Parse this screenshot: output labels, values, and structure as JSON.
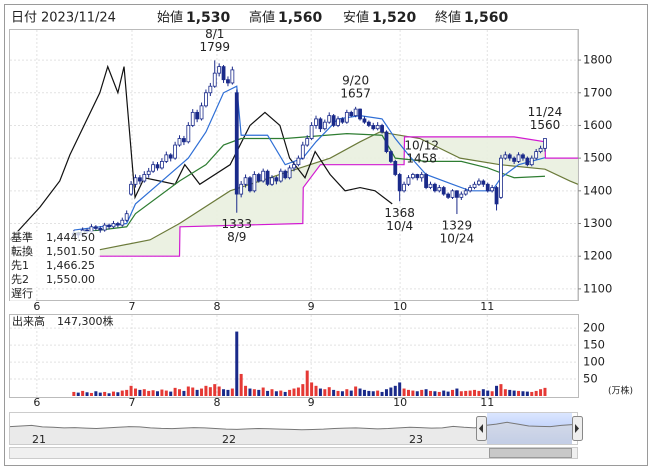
{
  "header": {
    "date_label": "日付",
    "date": "2023/11/24",
    "fields": [
      {
        "label": "始値",
        "value": "1,530",
        "color": "#111111"
      },
      {
        "label": "高値",
        "value": "1,560",
        "color": "#e00000"
      },
      {
        "label": "安値",
        "value": "1,520",
        "color": "#008a00"
      },
      {
        "label": "終値",
        "value": "1,560",
        "color": "#111111"
      }
    ]
  },
  "chart_data": {
    "type": "candlestick",
    "ohlc": [
      [
        1265,
        1280,
        1258,
        1270
      ],
      [
        1270,
        1275,
        1255,
        1265
      ],
      [
        1265,
        1288,
        1260,
        1280
      ],
      [
        1280,
        1285,
        1268,
        1275
      ],
      [
        1275,
        1298,
        1270,
        1290
      ],
      [
        1290,
        1295,
        1278,
        1285
      ],
      [
        1285,
        1292,
        1272,
        1280
      ],
      [
        1280,
        1302,
        1275,
        1295
      ],
      [
        1295,
        1300,
        1282,
        1290
      ],
      [
        1290,
        1308,
        1285,
        1300
      ],
      [
        1300,
        1305,
        1288,
        1295
      ],
      [
        1295,
        1318,
        1290,
        1310
      ],
      [
        1310,
        1340,
        1305,
        1330
      ],
      [
        1390,
        1430,
        1385,
        1420
      ],
      [
        1420,
        1450,
        1410,
        1440
      ],
      [
        1440,
        1448,
        1420,
        1430
      ],
      [
        1430,
        1460,
        1425,
        1450
      ],
      [
        1450,
        1470,
        1440,
        1460
      ],
      [
        1460,
        1490,
        1455,
        1480
      ],
      [
        1480,
        1488,
        1462,
        1470
      ],
      [
        1470,
        1500,
        1465,
        1490
      ],
      [
        1490,
        1520,
        1485,
        1510
      ],
      [
        1510,
        1515,
        1490,
        1500
      ],
      [
        1500,
        1550,
        1495,
        1540
      ],
      [
        1540,
        1570,
        1535,
        1560
      ],
      [
        1560,
        1568,
        1540,
        1550
      ],
      [
        1550,
        1610,
        1545,
        1600
      ],
      [
        1600,
        1650,
        1595,
        1640
      ],
      [
        1640,
        1648,
        1610,
        1620
      ],
      [
        1620,
        1670,
        1615,
        1660
      ],
      [
        1660,
        1710,
        1655,
        1700
      ],
      [
        1700,
        1730,
        1690,
        1720
      ],
      [
        1720,
        1799,
        1715,
        1760
      ],
      [
        1760,
        1790,
        1750,
        1780
      ],
      [
        1780,
        1785,
        1730,
        1740
      ],
      [
        1740,
        1750,
        1720,
        1730
      ],
      [
        1730,
        1780,
        1725,
        1770
      ],
      [
        1700,
        1710,
        1333,
        1390
      ],
      [
        1390,
        1430,
        1380,
        1420
      ],
      [
        1420,
        1450,
        1410,
        1440
      ],
      [
        1440,
        1445,
        1395,
        1400
      ],
      [
        1400,
        1460,
        1395,
        1450
      ],
      [
        1450,
        1455,
        1425,
        1430
      ],
      [
        1430,
        1468,
        1425,
        1460
      ],
      [
        1460,
        1465,
        1415,
        1420
      ],
      [
        1420,
        1448,
        1415,
        1440
      ],
      [
        1440,
        1445,
        1420,
        1430
      ],
      [
        1430,
        1468,
        1425,
        1460
      ],
      [
        1460,
        1465,
        1435,
        1440
      ],
      [
        1440,
        1478,
        1435,
        1470
      ],
      [
        1470,
        1490,
        1460,
        1480
      ],
      [
        1480,
        1508,
        1475,
        1500
      ],
      [
        1500,
        1550,
        1495,
        1540
      ],
      [
        1540,
        1570,
        1535,
        1560
      ],
      [
        1560,
        1610,
        1555,
        1600
      ],
      [
        1600,
        1630,
        1590,
        1620
      ],
      [
        1620,
        1625,
        1580,
        1590
      ],
      [
        1590,
        1618,
        1585,
        1610
      ],
      [
        1610,
        1640,
        1605,
        1630
      ],
      [
        1630,
        1635,
        1595,
        1600
      ],
      [
        1600,
        1628,
        1595,
        1620
      ],
      [
        1620,
        1625,
        1605,
        1610
      ],
      [
        1610,
        1648,
        1605,
        1640
      ],
      [
        1640,
        1645,
        1625,
        1630
      ],
      [
        1630,
        1657,
        1625,
        1650
      ],
      [
        1650,
        1652,
        1615,
        1620
      ],
      [
        1620,
        1628,
        1605,
        1610
      ],
      [
        1610,
        1615,
        1595,
        1600
      ],
      [
        1600,
        1608,
        1585,
        1590
      ],
      [
        1590,
        1610,
        1585,
        1600
      ],
      [
        1600,
        1605,
        1575,
        1580
      ],
      [
        1580,
        1585,
        1515,
        1520
      ],
      [
        1520,
        1525,
        1485,
        1490
      ],
      [
        1490,
        1495,
        1445,
        1450
      ],
      [
        1450,
        1455,
        1368,
        1400
      ],
      [
        1400,
        1428,
        1395,
        1420
      ],
      [
        1420,
        1448,
        1415,
        1440
      ],
      [
        1440,
        1455,
        1435,
        1450
      ],
      [
        1450,
        1452,
        1432,
        1440
      ],
      [
        1440,
        1458,
        1428,
        1450
      ],
      [
        1450,
        1455,
        1405,
        1410
      ],
      [
        1410,
        1428,
        1405,
        1420
      ],
      [
        1420,
        1425,
        1395,
        1400
      ],
      [
        1400,
        1418,
        1395,
        1410
      ],
      [
        1410,
        1415,
        1385,
        1390
      ],
      [
        1390,
        1395,
        1375,
        1380
      ],
      [
        1380,
        1405,
        1375,
        1400
      ],
      [
        1400,
        1402,
        1329,
        1380
      ],
      [
        1380,
        1398,
        1372,
        1390
      ],
      [
        1390,
        1408,
        1385,
        1400
      ],
      [
        1400,
        1418,
        1395,
        1410
      ],
      [
        1410,
        1428,
        1405,
        1420
      ],
      [
        1420,
        1438,
        1415,
        1430
      ],
      [
        1430,
        1435,
        1412,
        1420
      ],
      [
        1420,
        1425,
        1395,
        1400
      ],
      [
        1400,
        1418,
        1395,
        1410
      ],
      [
        1410,
        1415,
        1340,
        1360
      ],
      [
        1380,
        1510,
        1375,
        1500
      ],
      [
        1500,
        1520,
        1495,
        1510
      ],
      [
        1510,
        1515,
        1492,
        1500
      ],
      [
        1500,
        1505,
        1482,
        1490
      ],
      [
        1490,
        1518,
        1485,
        1510
      ],
      [
        1510,
        1515,
        1492,
        1500
      ],
      [
        1500,
        1505,
        1475,
        1480
      ],
      [
        1480,
        1508,
        1475,
        1500
      ],
      [
        1500,
        1528,
        1495,
        1520
      ],
      [
        1520,
        1538,
        1515,
        1530
      ],
      [
        1530,
        1560,
        1520,
        1560
      ]
    ],
    "up_color": "#ffffff",
    "down_color": "#1a2a8a",
    "candle_stroke": "#1a2a8a",
    "ylim": [
      1066,
      1892
    ],
    "yticks": [
      1100,
      1200,
      1300,
      1400,
      1500,
      1600,
      1700,
      1800
    ],
    "xlim": [
      -14.5,
      114.5
    ],
    "xticks": [
      {
        "value": -8.4,
        "label": "6"
      },
      {
        "value": 13.2,
        "label": "7"
      },
      {
        "value": 32.5,
        "label": "8"
      },
      {
        "value": 53.9,
        "label": "9"
      },
      {
        "value": 74.1,
        "label": "10"
      },
      {
        "value": 93.9,
        "label": "11"
      }
    ],
    "grid": true,
    "cloud_color": "#e9efdf",
    "ichimoku": [
      {
        "name": "基準",
        "legend_value": "1,444.50",
        "color": "#2e7d32",
        "x": [
          0,
          12,
          14,
          24,
          30,
          34,
          38,
          48,
          62,
          70,
          73,
          80,
          88,
          94,
          100,
          107
        ],
        "values": [
          1270,
          1290,
          1330,
          1430,
          1480,
          1540,
          1560,
          1560,
          1575,
          1570,
          1500,
          1490,
          1490,
          1470,
          1440,
          1444.5
        ]
      },
      {
        "name": "転換",
        "legend_value": "1,501.50",
        "color": "#2f6fd6",
        "x": [
          0,
          12,
          14,
          20,
          26,
          30,
          34,
          37,
          38,
          44,
          48,
          52,
          55,
          60,
          65,
          70,
          73,
          76,
          80,
          86,
          90,
          95,
          97,
          101,
          107
        ],
        "values": [
          1280,
          1300,
          1360,
          1430,
          1500,
          1580,
          1700,
          1720,
          1570,
          1570,
          1480,
          1500,
          1550,
          1620,
          1630,
          1620,
          1560,
          1510,
          1450,
          1420,
          1400,
          1400,
          1440,
          1480,
          1501.5
        ]
      },
      {
        "name": "先1",
        "legend_value": "1,466.25",
        "color": "#6b7a3a",
        "x": [
          5.9,
          17.3,
          24,
          35.5,
          46.8,
          58.2,
          65,
          69.5,
          78.6,
          87.7,
          96.8,
          107,
          112.7,
          114.5
        ],
        "values": [
          1220,
          1250,
          1300,
          1400,
          1450,
          1500,
          1550,
          1580,
          1560,
          1500,
          1480,
          1466.25,
          1430,
          1420
        ]
      },
      {
        "name": "先2",
        "legend_value": "1,550.00",
        "color": "#d21ad2",
        "x": [
          5.9,
          24,
          24.1,
          52,
          52.1,
          56,
          75,
          75.1,
          100,
          107,
          107.1,
          114.5
        ],
        "values": [
          1200,
          1200,
          1290,
          1300,
          1410,
          1480,
          1480,
          1565,
          1565,
          1550,
          1500,
          1500
        ]
      },
      {
        "name": "遅行",
        "color": "#111111",
        "x": [
          -14.5,
          -7.7,
          -3.2,
          -0.9,
          5.9,
          7.7,
          10,
          11.4,
          13.9,
          16,
          19.5,
          23,
          25.2,
          28.6,
          35.5,
          40,
          43.4,
          46.8,
          49,
          52.5,
          54.8,
          58.2,
          61.6,
          65,
          68.4,
          72.3
        ],
        "values": [
          1250,
          1350,
          1430,
          1510,
          1700,
          1780,
          1700,
          1780,
          1380,
          1440,
          1430,
          1420,
          1480,
          1420,
          1480,
          1600,
          1640,
          1600,
          1500,
          1440,
          1520,
          1450,
          1400,
          1410,
          1400,
          1360
        ]
      }
    ],
    "annotations": [
      {
        "date": "8/1",
        "value": 1799,
        "x": 32,
        "position": "above"
      },
      {
        "date": "8/9",
        "value": 1333,
        "x": 37,
        "position": "below"
      },
      {
        "date": "9/20",
        "value": 1657,
        "x": 64,
        "position": "above"
      },
      {
        "date": "10/4",
        "value": 1368,
        "x": 74,
        "position": "below"
      },
      {
        "date": "10/12",
        "value": 1458,
        "x": 79,
        "position": "above"
      },
      {
        "date": "10/24",
        "value": 1329,
        "x": 87,
        "position": "below"
      },
      {
        "date": "11/24",
        "value": 1560,
        "x": 107,
        "position": "above"
      }
    ],
    "volume": {
      "title": "出来高",
      "total": "147,300株",
      "unit": "(万株)",
      "up_color": "#e53935",
      "down_color": "#1a2a8a",
      "ylim": [
        0,
        230
      ],
      "yticks": [
        50,
        100,
        150,
        200
      ],
      "values": [
        12,
        10,
        15,
        11,
        9,
        14,
        10,
        12,
        8,
        13,
        11,
        16,
        18,
        30,
        22,
        18,
        20,
        15,
        17,
        14,
        19,
        16,
        13,
        24,
        20,
        15,
        28,
        25,
        18,
        22,
        30,
        26,
        35,
        28,
        20,
        18,
        22,
        190,
        65,
        30,
        22,
        20,
        18,
        25,
        15,
        20,
        14,
        16,
        12,
        18,
        22,
        25,
        35,
        75,
        40,
        30,
        22,
        20,
        26,
        18,
        15,
        14,
        20,
        16,
        28,
        22,
        18,
        15,
        14,
        16,
        12,
        20,
        25,
        30,
        40,
        22,
        18,
        16,
        14,
        18,
        20,
        15,
        14,
        12,
        16,
        13,
        18,
        22,
        14,
        15,
        16,
        18,
        15,
        20,
        16,
        14,
        30,
        35,
        20,
        18,
        16,
        15,
        14,
        13,
        12,
        15,
        20,
        24
      ]
    },
    "navigator": {
      "labels": [
        "21",
        "22",
        "23"
      ],
      "ylim": [
        0,
        2500
      ],
      "values": [
        1400,
        1450,
        1500,
        1380,
        1350,
        1300,
        1320,
        1280,
        1250,
        1300,
        1350,
        1400,
        1380,
        1300,
        1260,
        1240,
        1280,
        1320,
        1300,
        1250,
        1200,
        1180,
        1220,
        1250,
        1230,
        1200,
        1180,
        1150,
        1170,
        1200,
        1250,
        1280,
        1300,
        1260,
        1220,
        1250,
        1300,
        1350,
        1320,
        1280,
        1300,
        1420,
        1350,
        1300,
        1500,
        1600,
        1750,
        1600,
        1450,
        1420,
        1400,
        1500,
        1560
      ]
    }
  }
}
